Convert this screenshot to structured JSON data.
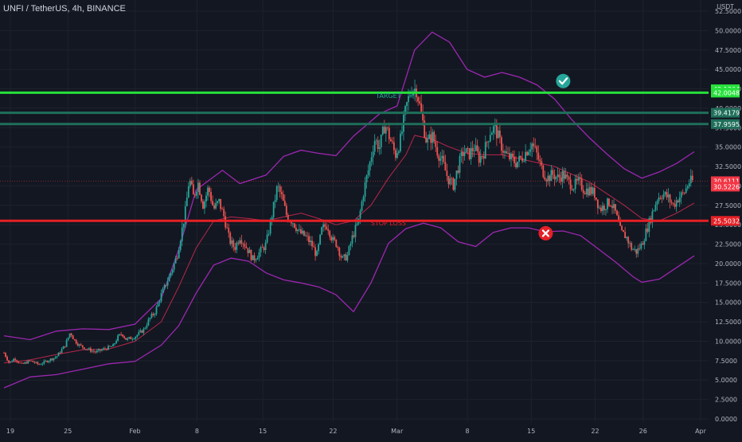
{
  "header": {
    "title": "UNFI / TetherUS, 4h, BINANCE",
    "currency": "USDT"
  },
  "chart_data": {
    "type": "candlestick",
    "symbol": "UNFI / TetherUS",
    "interval": "4h",
    "exchange": "BINANCE",
    "ylim": [
      0,
      52.5
    ],
    "y_ticks": [
      "0.0000",
      "2.5000",
      "5.0000",
      "7.5000",
      "10.0000",
      "12.5000",
      "15.0000",
      "17.5000",
      "20.0000",
      "22.5000",
      "25.0000",
      "27.5000",
      "30.0000",
      "32.5000",
      "35.0000",
      "37.5000",
      "40.0000",
      "42.5000",
      "45.0000",
      "47.5000",
      "50.0000",
      "52.5000"
    ],
    "x_ticks": [
      "19",
      "25",
      "Feb",
      "8",
      "15",
      "22",
      "Mar",
      "8",
      "15",
      "22",
      "26",
      "Apr"
    ],
    "close_path": [
      [
        0,
        8.5
      ],
      [
        0.6,
        7.2
      ],
      [
        1.2,
        7.8
      ],
      [
        2,
        7.0
      ],
      [
        3,
        7.5
      ],
      [
        4,
        7.0
      ],
      [
        5,
        7.5
      ],
      [
        6,
        8.0
      ],
      [
        7,
        9.5
      ],
      [
        7.6,
        11.2
      ],
      [
        8,
        10.2
      ],
      [
        8.6,
        9.5
      ],
      [
        9.5,
        9.0
      ],
      [
        10.5,
        8.6
      ],
      [
        11.5,
        9.0
      ],
      [
        12.5,
        9.4
      ],
      [
        13,
        10.5
      ],
      [
        13.5,
        11.0
      ],
      [
        14,
        10.2
      ],
      [
        15,
        10.6
      ],
      [
        16,
        11.5
      ],
      [
        16.6,
        12.8
      ],
      [
        17.3,
        13.8
      ],
      [
        18,
        16.0
      ],
      [
        19,
        18.5
      ],
      [
        19.8,
        21.0
      ],
      [
        20.4,
        24.5
      ],
      [
        20.8,
        27.0
      ],
      [
        21.2,
        31.0
      ],
      [
        21.7,
        28.5
      ],
      [
        22.2,
        30.5
      ],
      [
        22.8,
        27.5
      ],
      [
        23.4,
        29.8
      ],
      [
        24,
        27.0
      ],
      [
        24.6,
        28.0
      ],
      [
        25.2,
        26.0
      ],
      [
        25.8,
        23.0
      ],
      [
        26.4,
        22.0
      ],
      [
        27,
        23.5
      ],
      [
        27.8,
        22.0
      ],
      [
        28.5,
        20.5
      ],
      [
        29.3,
        21.5
      ],
      [
        30,
        22.5
      ],
      [
        30.8,
        27.0
      ],
      [
        31.3,
        30.0
      ],
      [
        31.8,
        28.5
      ],
      [
        32.4,
        26.0
      ],
      [
        33,
        25.5
      ],
      [
        33.8,
        24.0
      ],
      [
        34.5,
        23.5
      ],
      [
        35.2,
        22.5
      ],
      [
        35.8,
        21.0
      ],
      [
        36.4,
        24.5
      ],
      [
        37,
        25.0
      ],
      [
        37.6,
        23.0
      ],
      [
        38.1,
        22.5
      ],
      [
        38.7,
        20.5
      ],
      [
        39.3,
        21.0
      ],
      [
        39.9,
        23.5
      ],
      [
        40.6,
        25.5
      ],
      [
        41.2,
        29.5
      ],
      [
        41.8,
        32.5
      ],
      [
        42.4,
        36.0
      ],
      [
        43,
        35.0
      ],
      [
        43.6,
        38.0
      ],
      [
        44.2,
        36.0
      ],
      [
        44.8,
        34.0
      ],
      [
        45.4,
        36.0
      ],
      [
        46,
        40.0
      ],
      [
        46.6,
        42.5
      ],
      [
        47.2,
        42.5
      ],
      [
        47.8,
        39.0
      ],
      [
        48.4,
        35.5
      ],
      [
        49,
        36.5
      ],
      [
        49.6,
        34.5
      ],
      [
        50.2,
        33.0
      ],
      [
        50.8,
        31.0
      ],
      [
        51.4,
        30.0
      ],
      [
        52,
        32.5
      ],
      [
        52.6,
        34.5
      ],
      [
        53.2,
        34.0
      ],
      [
        53.8,
        35.0
      ],
      [
        54.4,
        33.5
      ],
      [
        55,
        34.5
      ],
      [
        55.6,
        37.0
      ],
      [
        56.2,
        37.5
      ],
      [
        56.8,
        35.5
      ],
      [
        57.4,
        34.0
      ],
      [
        58,
        33.5
      ],
      [
        58.6,
        33.0
      ],
      [
        59.2,
        33.5
      ],
      [
        59.8,
        34.5
      ],
      [
        60.4,
        35.5
      ],
      [
        61,
        34.0
      ],
      [
        61.6,
        32.0
      ],
      [
        62.2,
        31.0
      ],
      [
        62.8,
        31.5
      ],
      [
        63.4,
        31.0
      ],
      [
        64,
        31.5
      ],
      [
        64.6,
        30.5
      ],
      [
        65.2,
        30.0
      ],
      [
        65.8,
        30.5
      ],
      [
        66.4,
        29.5
      ],
      [
        67,
        29.5
      ],
      [
        67.6,
        29.0
      ],
      [
        68.2,
        27.0
      ],
      [
        68.8,
        27.5
      ],
      [
        69.4,
        28.0
      ],
      [
        70,
        26.5
      ],
      [
        70.6,
        24.0
      ],
      [
        71.2,
        23.5
      ],
      [
        71.8,
        22.0
      ],
      [
        72.4,
        21.5
      ],
      [
        73,
        22.5
      ],
      [
        73.6,
        24.5
      ],
      [
        74.2,
        26.5
      ],
      [
        74.8,
        28.5
      ],
      [
        75.4,
        29.0
      ],
      [
        76,
        28.5
      ],
      [
        76.6,
        27.5
      ],
      [
        77.2,
        28.5
      ],
      [
        77.8,
        29.0
      ],
      [
        78.4,
        30.5
      ],
      [
        78.8,
        30.6111
      ]
    ],
    "bollinger_upper": [
      [
        0,
        10.7
      ],
      [
        3,
        10.2
      ],
      [
        6,
        11.3
      ],
      [
        9,
        11.6
      ],
      [
        12,
        11.5
      ],
      [
        15,
        12.2
      ],
      [
        18,
        15.5
      ],
      [
        20,
        21.8
      ],
      [
        22,
        29.5
      ],
      [
        25,
        32.0
      ],
      [
        27,
        30.3
      ],
      [
        30,
        31.4
      ],
      [
        32,
        33.8
      ],
      [
        34,
        34.6
      ],
      [
        36,
        34.2
      ],
      [
        38,
        33.9
      ],
      [
        40,
        36.4
      ],
      [
        43,
        39.3
      ],
      [
        45,
        40.3
      ],
      [
        47,
        47.5
      ],
      [
        49,
        49.8
      ],
      [
        51,
        48.5
      ],
      [
        53,
        45.0
      ],
      [
        55,
        44.0
      ],
      [
        57,
        44.6
      ],
      [
        59,
        44.0
      ],
      [
        61,
        43.0
      ],
      [
        63,
        41.2
      ],
      [
        65,
        38.5
      ],
      [
        67,
        36.2
      ],
      [
        69,
        34.1
      ],
      [
        71,
        32.2
      ],
      [
        73,
        31.0
      ],
      [
        75,
        31.8
      ],
      [
        77,
        32.9
      ],
      [
        79,
        34.4
      ]
    ],
    "bollinger_lower": [
      [
        0,
        4.0
      ],
      [
        3,
        5.4
      ],
      [
        6,
        5.7
      ],
      [
        9,
        6.4
      ],
      [
        12,
        7.1
      ],
      [
        15,
        7.4
      ],
      [
        18,
        9.5
      ],
      [
        20,
        12.0
      ],
      [
        22,
        16.2
      ],
      [
        24,
        19.8
      ],
      [
        26,
        20.7
      ],
      [
        28,
        20.3
      ],
      [
        30,
        18.8
      ],
      [
        32,
        17.9
      ],
      [
        34,
        17.5
      ],
      [
        36,
        17.0
      ],
      [
        38,
        16.0
      ],
      [
        40,
        13.8
      ],
      [
        42,
        17.5
      ],
      [
        44,
        22.6
      ],
      [
        46,
        24.5
      ],
      [
        48,
        25.2
      ],
      [
        50,
        24.6
      ],
      [
        52,
        22.8
      ],
      [
        54,
        22.2
      ],
      [
        56,
        24.0
      ],
      [
        58,
        24.6
      ],
      [
        60,
        24.6
      ],
      [
        62,
        24.1
      ],
      [
        64,
        24.2
      ],
      [
        66,
        23.6
      ],
      [
        68,
        21.9
      ],
      [
        70,
        20.2
      ],
      [
        72,
        18.3
      ],
      [
        73,
        17.6
      ],
      [
        75,
        18.0
      ],
      [
        77,
        19.5
      ],
      [
        79,
        21.0
      ]
    ],
    "bollinger_basis": [
      [
        0,
        7.2
      ],
      [
        3,
        7.6
      ],
      [
        6,
        8.3
      ],
      [
        9,
        8.9
      ],
      [
        12,
        9.0
      ],
      [
        15,
        10.0
      ],
      [
        18,
        12.5
      ],
      [
        20,
        17.0
      ],
      [
        22,
        22.0
      ],
      [
        24,
        25.5
      ],
      [
        26,
        26.0
      ],
      [
        28,
        25.8
      ],
      [
        30,
        25.5
      ],
      [
        32,
        26.0
      ],
      [
        34,
        26.5
      ],
      [
        36,
        25.8
      ],
      [
        38,
        25.0
      ],
      [
        40,
        25.5
      ],
      [
        42,
        27.5
      ],
      [
        44,
        31.0
      ],
      [
        46,
        34.0
      ],
      [
        47,
        36.5
      ],
      [
        49,
        36.0
      ],
      [
        51,
        35.0
      ],
      [
        53,
        34.2
      ],
      [
        55,
        34.0
      ],
      [
        57,
        34.0
      ],
      [
        59,
        33.5
      ],
      [
        61,
        33.0
      ],
      [
        63,
        32.5
      ],
      [
        65,
        31.5
      ],
      [
        67,
        30.5
      ],
      [
        69,
        29.0
      ],
      [
        71,
        27.5
      ],
      [
        73,
        25.8
      ],
      [
        75,
        25.5
      ],
      [
        77,
        26.5
      ],
      [
        79,
        27.8
      ]
    ],
    "horizontal_levels": [
      {
        "label": "42.0048",
        "value": 42.0048,
        "color": "#26e03b"
      },
      {
        "label": "39.4179",
        "value": 39.4179,
        "color": "#1f6f5a"
      },
      {
        "label": "37.9595",
        "value": 37.9595,
        "color": "#1f6f5a"
      },
      {
        "label": "25.5032",
        "value": 25.5032,
        "color": "#e52026"
      }
    ],
    "price_tags": [
      {
        "label": "42.1364",
        "value": 42.45,
        "color": "#26e03b"
      },
      {
        "label": "42.0048",
        "value": 42.0048,
        "color": "#26e03b"
      },
      {
        "label": "39.4179",
        "value": 39.4179,
        "color": "#1f6f5a"
      },
      {
        "label": "37.9595",
        "value": 37.9595,
        "color": "#1f6f5a"
      },
      {
        "label": "30.6111",
        "value": 30.6111,
        "color": "#f23645"
      },
      {
        "label": "30.5226",
        "value": 29.9,
        "color": "#f23645"
      },
      {
        "label": "25.5032",
        "value": 25.5032,
        "color": "#e52026"
      }
    ],
    "annotations": [
      {
        "text": "TARGET",
        "x": 44,
        "value": 41.3,
        "color": "#26a69a"
      },
      {
        "text": "STOP LOSS",
        "x": 44,
        "value": 24.9,
        "color": "#e52026"
      }
    ],
    "markers": [
      {
        "name": "target-check-icon",
        "x": 64,
        "value": 43.5,
        "color": "#26a69a"
      },
      {
        "name": "stop-cross-icon",
        "x": 62,
        "value": 23.9,
        "color": "#e52026"
      }
    ],
    "current_price": 30.6111,
    "colors": {
      "background": "#131722",
      "up": "#26a69a",
      "down": "#ef5350",
      "bands": "#9c27b0",
      "basis": "#b7274b",
      "grid": "#1e222d",
      "text": "#b2b5be"
    }
  }
}
